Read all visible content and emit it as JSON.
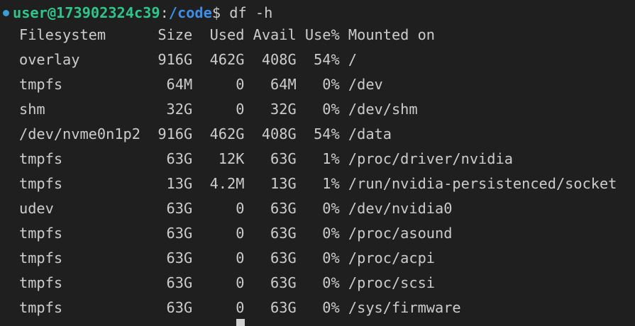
{
  "prompt": {
    "user_host": "user@173902324c39",
    "sep": ":",
    "path": "/code",
    "symbol": "$ ",
    "command": "df -h"
  },
  "colors": {
    "background": "#1f1f1f",
    "text": "#cccccc",
    "user_host": "#2fc58c",
    "path": "#3e8ee8",
    "status_dot": "#3c9cd4"
  },
  "header": [
    "Filesystem",
    "Size",
    "Used",
    "Avail",
    "Use%",
    "Mounted on"
  ],
  "rows": [
    [
      "overlay",
      "916G",
      "462G",
      "408G",
      "54%",
      "/"
    ],
    [
      "tmpfs",
      "64M",
      "0",
      "64M",
      "0%",
      "/dev"
    ],
    [
      "shm",
      "32G",
      "0",
      "32G",
      "0%",
      "/dev/shm"
    ],
    [
      "/dev/nvme0n1p2",
      "916G",
      "462G",
      "408G",
      "54%",
      "/data"
    ],
    [
      "tmpfs",
      "63G",
      "12K",
      "63G",
      "1%",
      "/proc/driver/nvidia"
    ],
    [
      "tmpfs",
      "13G",
      "4.2M",
      "13G",
      "1%",
      "/run/nvidia-persistenced/socket"
    ],
    [
      "udev",
      "63G",
      "0",
      "63G",
      "0%",
      "/dev/nvidia0"
    ],
    [
      "tmpfs",
      "63G",
      "0",
      "63G",
      "0%",
      "/proc/asound"
    ],
    [
      "tmpfs",
      "63G",
      "0",
      "63G",
      "0%",
      "/proc/acpi"
    ],
    [
      "tmpfs",
      "63G",
      "0",
      "63G",
      "0%",
      "/proc/scsi"
    ],
    [
      "tmpfs",
      "63G",
      "0",
      "63G",
      "0%",
      "/sys/firmware"
    ]
  ]
}
